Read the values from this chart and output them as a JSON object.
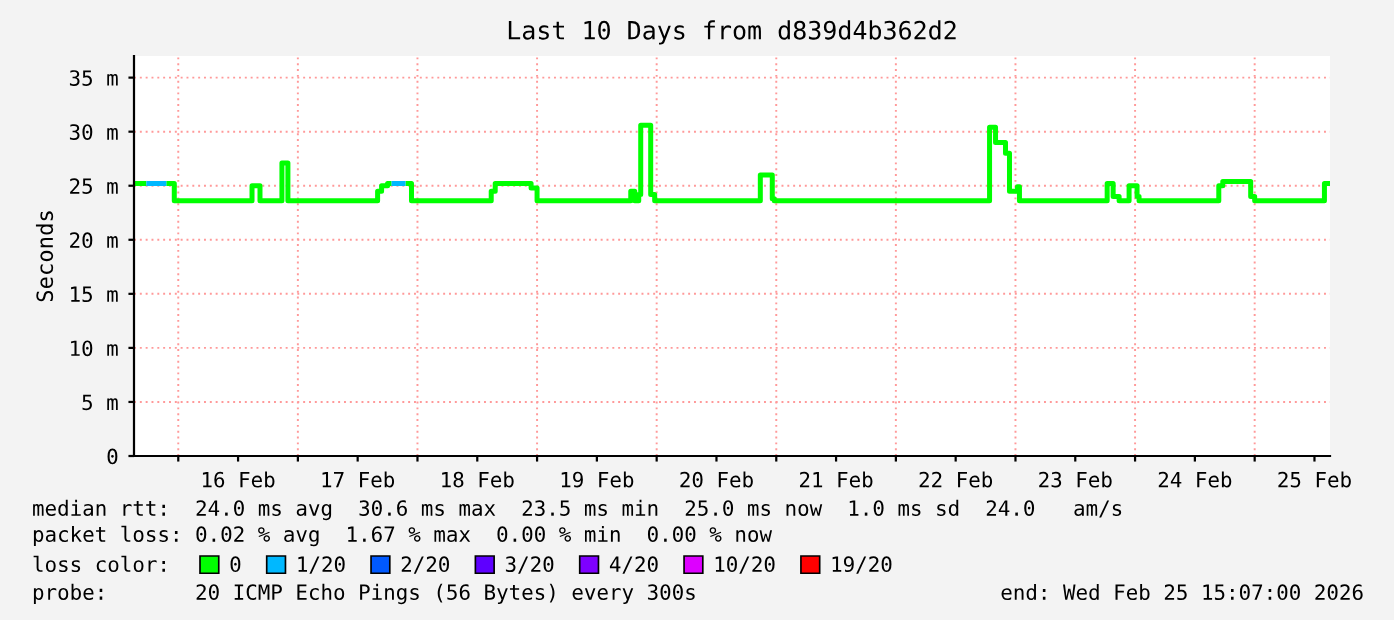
{
  "chart_data": {
    "type": "line",
    "title": "Last 10 Days from d839d4b362d2",
    "ylabel": "Seconds",
    "xlim": [
      "2026-02-15T15:07",
      "2026-02-25T15:07"
    ],
    "xticks": [
      {
        "value": "2026-02-16T00:00",
        "label": null
      },
      {
        "value": "2026-02-16T12:00",
        "label": "16 Feb"
      },
      {
        "value": "2026-02-17T00:00",
        "label": null
      },
      {
        "value": "2026-02-17T12:00",
        "label": "17 Feb"
      },
      {
        "value": "2026-02-18T00:00",
        "label": null
      },
      {
        "value": "2026-02-18T12:00",
        "label": "18 Feb"
      },
      {
        "value": "2026-02-19T00:00",
        "label": null
      },
      {
        "value": "2026-02-19T12:00",
        "label": "19 Feb"
      },
      {
        "value": "2026-02-20T00:00",
        "label": null
      },
      {
        "value": "2026-02-20T12:00",
        "label": "20 Feb"
      },
      {
        "value": "2026-02-21T00:00",
        "label": null
      },
      {
        "value": "2026-02-21T12:00",
        "label": "21 Feb"
      },
      {
        "value": "2026-02-22T00:00",
        "label": null
      },
      {
        "value": "2026-02-22T12:00",
        "label": "22 Feb"
      },
      {
        "value": "2026-02-23T00:00",
        "label": null
      },
      {
        "value": "2026-02-23T12:00",
        "label": "23 Feb"
      },
      {
        "value": "2026-02-24T00:00",
        "label": null
      },
      {
        "value": "2026-02-24T12:00",
        "label": "24 Feb"
      },
      {
        "value": "2026-02-25T00:00",
        "label": null
      },
      {
        "value": "2026-02-25T12:00",
        "label": "25 Feb"
      }
    ],
    "ylim": [
      0,
      37
    ],
    "yticks": [
      0,
      {
        "value": 5,
        "label": "5 m"
      },
      {
        "value": 10,
        "label": "10 m"
      },
      {
        "value": 15,
        "label": "15 m"
      },
      {
        "value": 20,
        "label": "20 m"
      },
      {
        "value": 25,
        "label": "25 m"
      },
      {
        "value": 30,
        "label": "30 m"
      },
      {
        "value": 35,
        "label": "35 m"
      }
    ],
    "grid": true,
    "legend": "bottom",
    "legend_title": "loss color:",
    "series": [
      {
        "name": "0",
        "color": "#00ff00",
        "x": [
          "2026-02-15T15:12",
          "2026-02-15T17:36",
          "2026-02-15T19:30",
          "2026-02-15T21:36",
          "2026-02-15T23:12",
          "2026-02-15T23:12",
          "2026-02-16T14:48",
          "2026-02-16T14:48",
          "2026-02-16T16:24",
          "2026-02-16T16:24",
          "2026-02-16T20:48",
          "2026-02-16T20:48",
          "2026-02-16T22:00",
          "2026-02-16T22:00",
          "2026-02-17T16:00",
          "2026-02-17T16:00",
          "2026-02-17T16:48",
          "2026-02-17T16:48",
          "2026-02-17T18:00",
          "2026-02-17T18:00",
          "2026-02-17T18:48",
          "2026-02-17T20:00",
          "2026-02-17T21:36",
          "2026-02-17T22:48",
          "2026-02-17T22:48",
          "2026-02-18T14:48",
          "2026-02-18T14:48",
          "2026-02-18T15:36",
          "2026-02-18T15:36",
          "2026-02-18T20:48",
          "2026-02-18T21:30",
          "2026-02-18T22:24",
          "2026-02-18T22:48",
          "2026-02-18T22:48",
          "2026-02-19T00:00",
          "2026-02-19T00:00",
          "2026-02-19T18:48",
          "2026-02-19T18:48",
          "2026-02-19T19:36",
          "2026-02-19T19:36",
          "2026-02-19T20:24",
          "2026-02-19T20:24",
          "2026-02-19T20:48",
          "2026-02-19T20:48",
          "2026-02-19T22:48",
          "2026-02-19T22:48",
          "2026-02-19T23:36",
          "2026-02-19T23:36",
          "2026-02-20T20:48",
          "2026-02-20T20:48",
          "2026-02-20T23:12",
          "2026-02-20T23:12",
          "2026-02-20T23:36",
          "2026-02-20T23:36",
          "2026-02-22T18:48",
          "2026-02-22T18:48",
          "2026-02-22T20:00",
          "2026-02-22T20:00",
          "2026-02-22T22:00",
          "2026-02-22T22:00",
          "2026-02-22T22:48",
          "2026-02-22T22:48",
          "2026-02-23T00:24",
          "2026-02-23T00:24",
          "2026-02-23T00:48",
          "2026-02-23T00:48",
          "2026-02-23T18:24",
          "2026-02-23T18:24",
          "2026-02-23T19:36",
          "2026-02-23T19:36",
          "2026-02-23T20:48",
          "2026-02-23T20:48",
          "2026-02-23T22:48",
          "2026-02-23T22:48",
          "2026-02-24T00:24",
          "2026-02-24T00:24",
          "2026-02-24T00:48",
          "2026-02-24T00:48",
          "2026-02-24T16:48",
          "2026-02-24T16:48",
          "2026-02-24T17:36",
          "2026-02-24T17:36",
          "2026-02-24T23:12",
          "2026-02-24T23:12",
          "2026-02-25T00:00",
          "2026-02-25T00:00",
          "2026-02-25T14:00",
          "2026-02-25T14:00",
          "2026-02-25T15:07"
        ],
        "values": [
          25.2,
          25.2,
          null,
          25.2,
          25.2,
          23.6,
          23.6,
          25.0,
          25.0,
          23.6,
          23.6,
          27.1,
          27.1,
          23.6,
          23.6,
          24.5,
          24.5,
          25.0,
          25.0,
          25.2,
          25.2,
          null,
          25.2,
          25.2,
          23.6,
          23.6,
          24.5,
          24.5,
          25.2,
          25.2,
          25.2,
          25.2,
          25.2,
          24.8,
          24.8,
          23.6,
          23.6,
          24.5,
          24.5,
          23.6,
          23.6,
          24.2,
          24.2,
          30.6,
          30.6,
          24.2,
          24.2,
          23.6,
          23.6,
          26.0,
          26.0,
          23.8,
          23.8,
          23.6,
          23.6,
          30.4,
          30.4,
          29.0,
          29.0,
          28.0,
          28.0,
          24.5,
          24.5,
          24.9,
          24.9,
          23.6,
          23.6,
          25.2,
          25.2,
          24.0,
          24.0,
          23.6,
          23.6,
          25.0,
          25.0,
          24.0,
          24.0,
          23.6,
          23.6,
          25.0,
          25.0,
          25.4,
          25.4,
          24.0,
          24.0,
          23.6,
          23.6,
          25.2,
          25.2
        ]
      },
      {
        "name": "1/20",
        "color": "#00b8ff",
        "x": [
          "2026-02-15T17:36",
          "2026-02-15T21:36",
          "2026-02-16T12:00",
          "2026-02-17T18:48",
          "2026-02-17T21:36"
        ],
        "values": [
          25.2,
          25.2,
          null,
          25.2,
          25.2
        ]
      },
      {
        "name": "2/20",
        "color": "#0059ff"
      },
      {
        "name": "3/20",
        "color": "#5e00ff"
      },
      {
        "name": "4/20",
        "color": "#7e00ff"
      },
      {
        "name": "10/20",
        "color": "#dd00ff"
      },
      {
        "name": "19/20",
        "color": "#ff0000"
      }
    ],
    "annotations": [
      "median rtt:  24.0 ms avg  30.6 ms max  23.5 ms min  25.0 ms now  1.0 ms sd  24.0   am/s",
      "packet loss: 0.02 % avg  1.67 % max  0.00 % min  0.00 % now",
      "probe:       20 ICMP Echo Pings (56 Bytes) every 300s",
      "end: Wed Feb 25 15:07:00 2026"
    ]
  }
}
